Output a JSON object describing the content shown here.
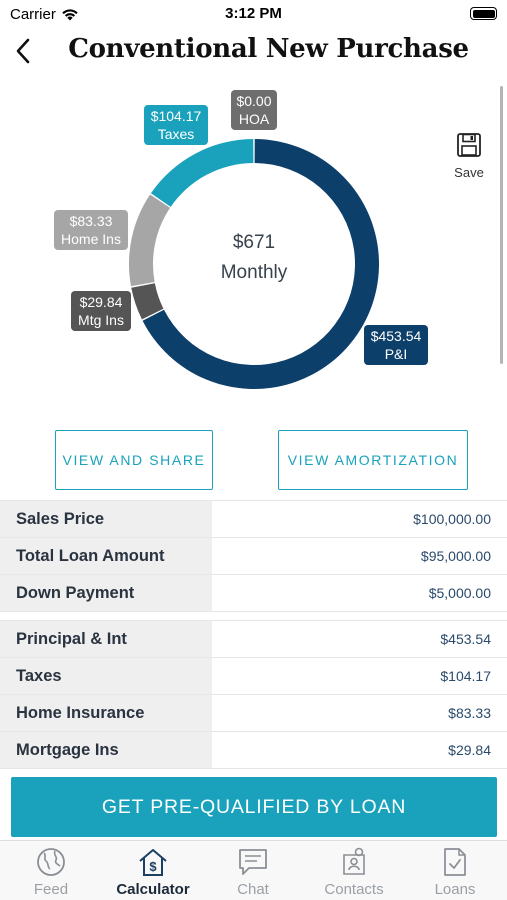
{
  "status_bar": {
    "carrier": "Carrier",
    "time": "3:12 PM"
  },
  "nav": {
    "title": "Conventional New Purchase"
  },
  "chart": {
    "center_amount": "$671",
    "center_label": "Monthly",
    "callouts": {
      "pi": {
        "amount": "$453.54",
        "label": "P&I"
      },
      "taxes": {
        "amount": "$104.17",
        "label": "Taxes"
      },
      "hoa": {
        "amount": "$0.00",
        "label": "HOA"
      },
      "home_ins": {
        "amount": "$83.33",
        "label": "Home Ins"
      },
      "mtg_ins": {
        "amount": "$29.84",
        "label": "Mtg Ins"
      }
    },
    "colors": {
      "pi": "#0d3f6b",
      "taxes": "#1aa2bd",
      "hoa": "#6e6e6e",
      "home_ins": "#a6a6a6",
      "mtg_ins": "#555555"
    }
  },
  "save": {
    "label": "Save",
    "icon": "floppy-disk-icon"
  },
  "buttons": {
    "view_share": "VIEW AND SHARE",
    "view_amortization": "VIEW AMORTIZATION"
  },
  "loan_table": [
    {
      "label": "Sales Price",
      "value": "$100,000.00"
    },
    {
      "label": "Total Loan Amount",
      "value": "$95,000.00"
    },
    {
      "label": "Down Payment",
      "value": "$5,000.00"
    }
  ],
  "payment_table": [
    {
      "label": "Principal & Int",
      "value": "$453.54"
    },
    {
      "label": "Taxes",
      "value": "$104.17"
    },
    {
      "label": "Home Insurance",
      "value": "$83.33"
    },
    {
      "label": "Mortgage Ins",
      "value": "$29.84"
    }
  ],
  "cta": {
    "label": "GET PRE-QUALIFIED BY LOAN"
  },
  "tabs": [
    {
      "label": "Feed",
      "icon": "globe-icon",
      "active": false
    },
    {
      "label": "Calculator",
      "icon": "house-dollar-icon",
      "active": true
    },
    {
      "label": "Chat",
      "icon": "chat-bubble-icon",
      "active": false
    },
    {
      "label": "Contacts",
      "icon": "contacts-icon",
      "active": false
    },
    {
      "label": "Loans",
      "icon": "document-check-icon",
      "active": false
    }
  ],
  "colors": {
    "accent": "#1aa2bd",
    "navy": "#0d3f6b"
  }
}
